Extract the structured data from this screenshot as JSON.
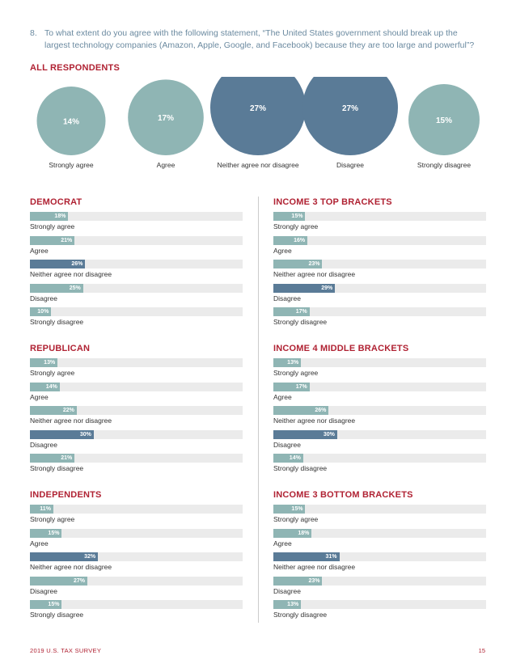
{
  "question": {
    "number": "8.",
    "text": "To what extent do you agree with the following statement, “The United States government should break up the largest technology companies (Amazon, Apple, Google, and Facebook) because they are too large and powerful”?"
  },
  "colors": {
    "light": "#8fb5b4",
    "dark": "#5a7b97",
    "track": "#ebebeb",
    "accent": "#b02233"
  },
  "footer": {
    "left": "2019 U.S. TAX SURVEY",
    "right": "15"
  },
  "chart_data": [
    {
      "type": "bubble",
      "title": "ALL RESPONDENTS",
      "categories": [
        "Strongly agree",
        "Agree",
        "Neither agree nor disagree",
        "Disagree",
        "Strongly disagree"
      ],
      "values": [
        14,
        17,
        27,
        27,
        15
      ],
      "labels": [
        "14%",
        "17%",
        "27%",
        "27%",
        "15%"
      ]
    },
    {
      "type": "bar",
      "title": "DEMOCRAT",
      "categories": [
        "Strongly agree",
        "Agree",
        "Neither agree nor disagree",
        "Disagree",
        "Strongly disagree"
      ],
      "values": [
        18,
        21,
        26,
        25,
        10
      ],
      "labels": [
        "18%",
        "21%",
        "26%",
        "25%",
        "10%"
      ],
      "xlim": [
        0,
        100
      ]
    },
    {
      "type": "bar",
      "title": "INCOME 3 TOP BRACKETS",
      "categories": [
        "Strongly agree",
        "Agree",
        "Neither agree nor disagree",
        "Disagree",
        "Strongly disagree"
      ],
      "values": [
        15,
        16,
        23,
        29,
        17
      ],
      "labels": [
        "15%",
        "16%",
        "23%",
        "29%",
        "17%"
      ],
      "xlim": [
        0,
        100
      ]
    },
    {
      "type": "bar",
      "title": "REPUBLICAN",
      "categories": [
        "Strongly agree",
        "Agree",
        "Neither agree nor disagree",
        "Disagree",
        "Strongly disagree"
      ],
      "values": [
        13,
        14,
        22,
        30,
        21
      ],
      "labels": [
        "13%",
        "14%",
        "22%",
        "30%",
        "21%"
      ],
      "xlim": [
        0,
        100
      ]
    },
    {
      "type": "bar",
      "title": "INCOME 4 MIDDLE BRACKETS",
      "categories": [
        "Strongly agree",
        "Agree",
        "Neither agree nor disagree",
        "Disagree",
        "Strongly disagree"
      ],
      "values": [
        13,
        17,
        26,
        30,
        14
      ],
      "labels": [
        "13%",
        "17%",
        "26%",
        "30%",
        "14%"
      ],
      "xlim": [
        0,
        100
      ]
    },
    {
      "type": "bar",
      "title": "INDEPENDENTS",
      "categories": [
        "Strongly agree",
        "Agree",
        "Neither agree nor disagree",
        "Disagree",
        "Strongly disagree"
      ],
      "values": [
        11,
        15,
        32,
        27,
        15
      ],
      "labels": [
        "11%",
        "15%",
        "32%",
        "27%",
        "15%"
      ],
      "xlim": [
        0,
        100
      ]
    },
    {
      "type": "bar",
      "title": "INCOME 3 BOTTOM BRACKETS",
      "categories": [
        "Strongly agree",
        "Agree",
        "Neither agree nor disagree",
        "Disagree",
        "Strongly disagree"
      ],
      "values": [
        15,
        18,
        31,
        23,
        13
      ],
      "labels": [
        "15%",
        "18%",
        "31%",
        "23%",
        "13%"
      ],
      "xlim": [
        0,
        100
      ]
    }
  ]
}
